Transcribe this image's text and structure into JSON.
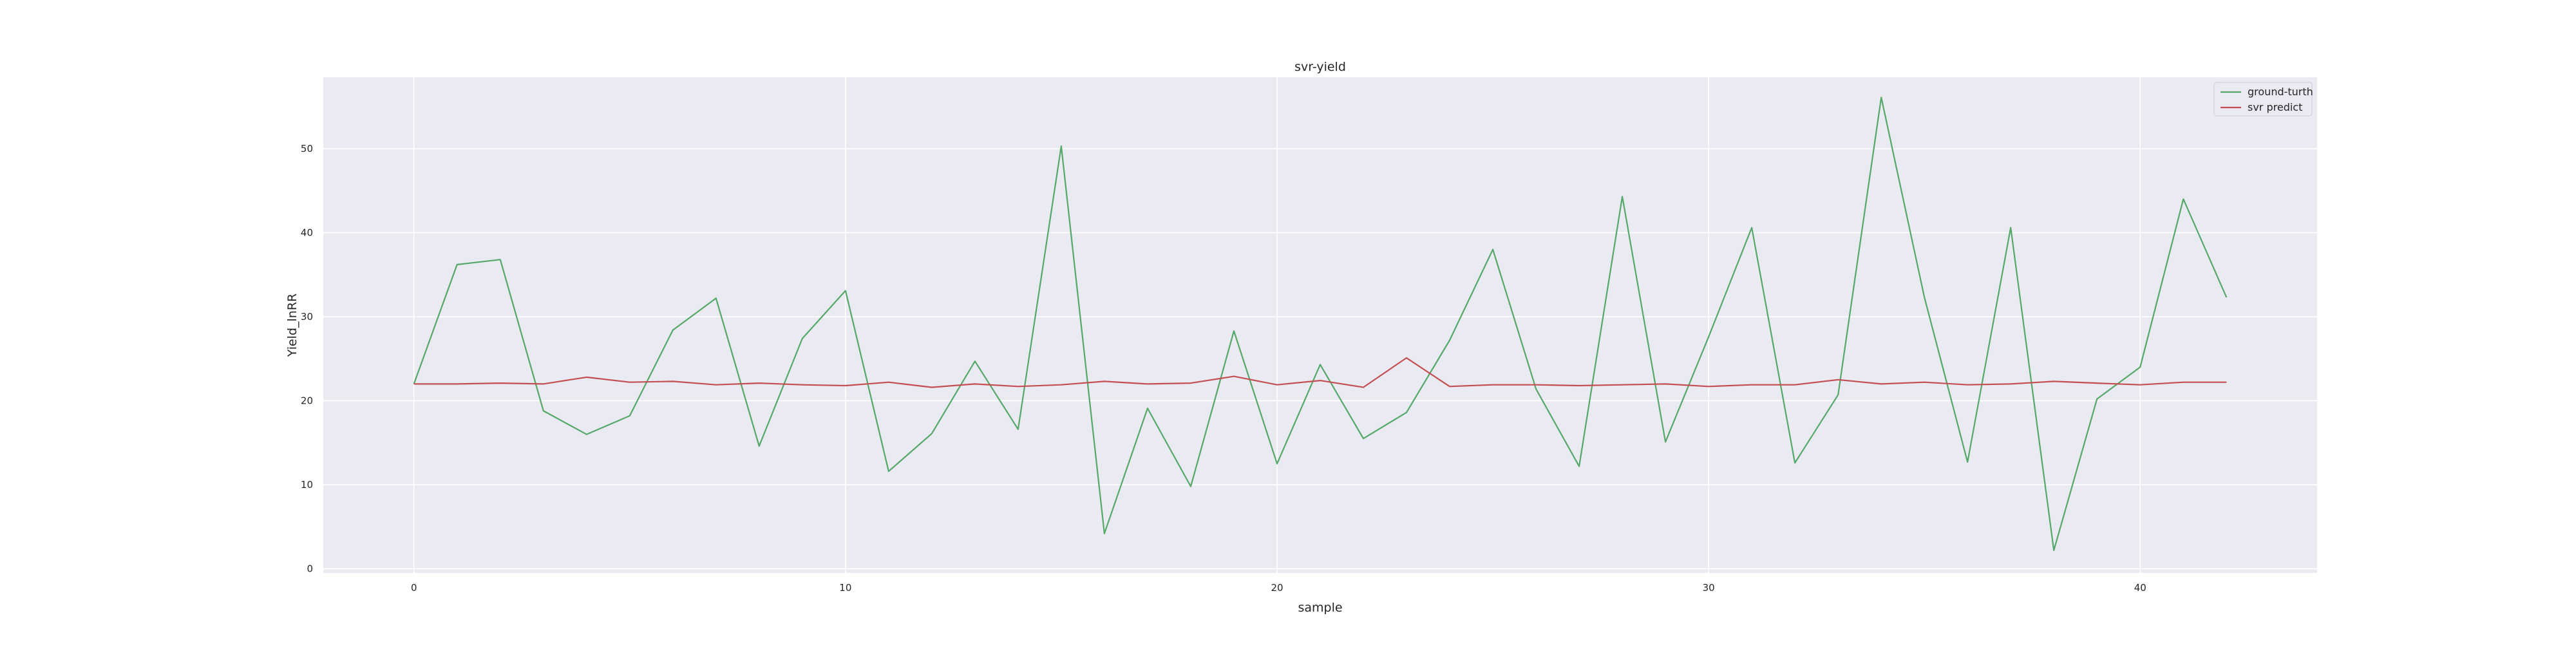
{
  "chart_data": {
    "type": "line",
    "title": "svr-yield",
    "xlabel": "sample",
    "ylabel": "Yield_lnRR",
    "xlim": [
      -2.1,
      44.1
    ],
    "ylim": [
      -0.5,
      58.5
    ],
    "x_ticks": [
      0,
      10,
      20,
      30,
      40
    ],
    "y_ticks": [
      0,
      10,
      20,
      30,
      40,
      50
    ],
    "grid": true,
    "legend_position": "top-right",
    "x": [
      0,
      1,
      2,
      3,
      4,
      5,
      6,
      7,
      8,
      9,
      10,
      11,
      12,
      13,
      14,
      15,
      16,
      17,
      18,
      19,
      20,
      21,
      22,
      23,
      24,
      25,
      26,
      27,
      28,
      29,
      30,
      31,
      32,
      33,
      34,
      35,
      36,
      37,
      38,
      39,
      40,
      41,
      42
    ],
    "series": [
      {
        "name": "ground-turth",
        "color": "#55a868",
        "values": [
          22.0,
          36.2,
          36.8,
          18.8,
          16.0,
          18.2,
          28.4,
          32.2,
          14.6,
          27.4,
          33.1,
          11.6,
          16.1,
          24.7,
          16.6,
          50.3,
          4.2,
          19.1,
          9.8,
          28.3,
          12.5,
          24.3,
          15.5,
          18.6,
          27.2,
          38.0,
          21.4,
          12.2,
          44.3,
          15.1,
          27.6,
          40.6,
          12.6,
          20.7,
          56.1,
          32.3,
          12.7,
          40.6,
          2.2,
          20.2,
          24.0,
          44.0,
          32.3
        ]
      },
      {
        "name": "svr predict",
        "color": "#c44e52",
        "values": [
          22.0,
          22.0,
          22.1,
          22.0,
          22.8,
          22.2,
          22.3,
          21.9,
          22.1,
          21.9,
          21.8,
          22.2,
          21.6,
          22.0,
          21.7,
          21.9,
          22.3,
          22.0,
          22.1,
          22.9,
          21.9,
          22.4,
          21.6,
          25.1,
          21.7,
          21.9,
          21.9,
          21.8,
          21.9,
          22.0,
          21.7,
          21.9,
          21.9,
          22.5,
          22.0,
          22.2,
          21.9,
          22.0,
          22.3,
          22.1,
          21.9,
          22.2,
          22.2
        ]
      }
    ],
    "style": {
      "plot_bg": "#eaeaf2",
      "grid_color": "#ffffff"
    }
  }
}
